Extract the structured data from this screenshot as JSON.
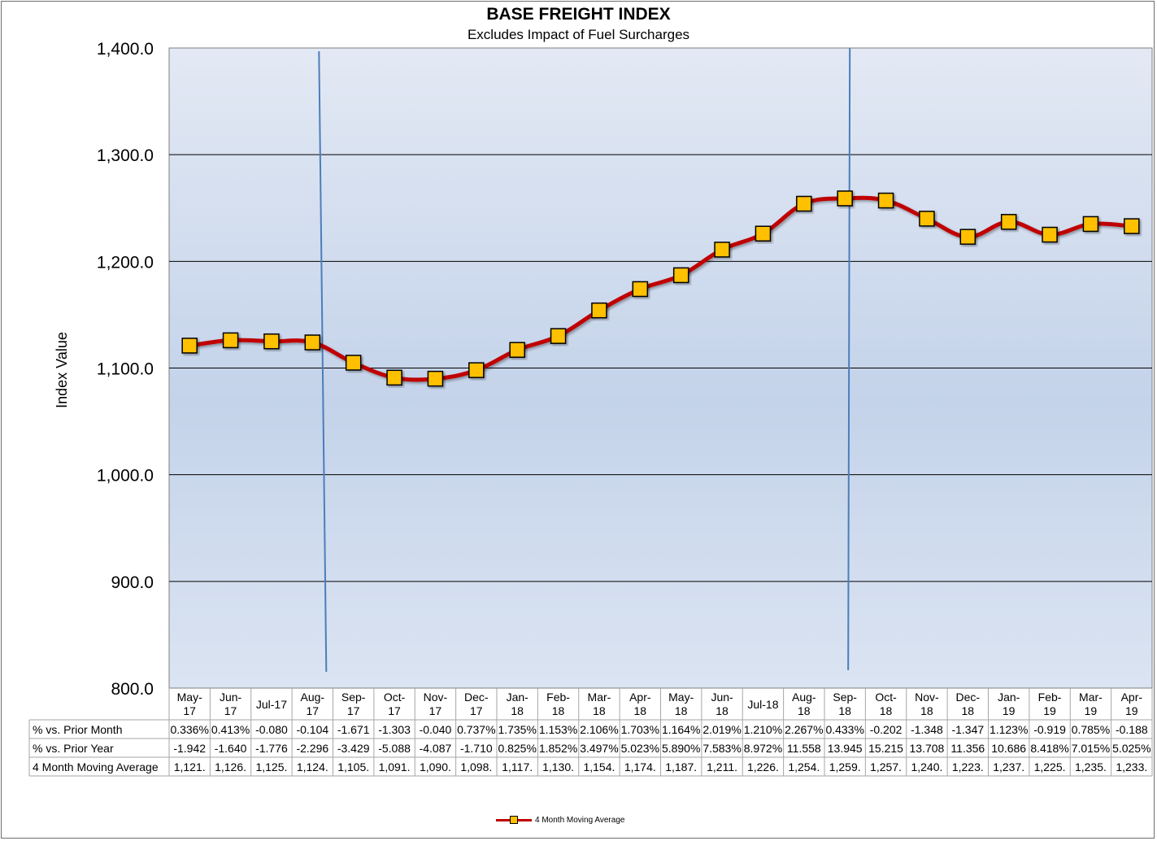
{
  "chart_data": {
    "type": "line",
    "title": "BASE FREIGHT INDEX",
    "subtitle": "Excludes Impact of Fuel Surcharges",
    "ylabel": "Index Value",
    "ylim": [
      800,
      1400
    ],
    "yticks": [
      800,
      900,
      1000,
      1100,
      1200,
      1300,
      1400
    ],
    "ytick_labels": [
      "800.0",
      "900.0",
      "1,000.0",
      "1,100.0",
      "1,200.0",
      "1,300.0",
      "1,400.0"
    ],
    "grid": "horizontal",
    "legend_position": "bottom-center",
    "categories": [
      [
        "May-",
        "17"
      ],
      [
        "Jun-",
        "17"
      ],
      [
        "Jul-17"
      ],
      [
        "Aug-",
        "17"
      ],
      [
        "Sep-",
        "17"
      ],
      [
        "Oct-",
        "17"
      ],
      [
        "Nov-",
        "17"
      ],
      [
        "Dec-",
        "17"
      ],
      [
        "Jan-",
        "18"
      ],
      [
        "Feb-",
        "18"
      ],
      [
        "Mar-",
        "18"
      ],
      [
        "Apr-",
        "18"
      ],
      [
        "May-",
        "18"
      ],
      [
        "Jun-",
        "18"
      ],
      [
        "Jul-18"
      ],
      [
        "Aug-",
        "18"
      ],
      [
        "Sep-",
        "18"
      ],
      [
        "Oct-",
        "18"
      ],
      [
        "Nov-",
        "18"
      ],
      [
        "Dec-",
        "18"
      ],
      [
        "Jan-",
        "19"
      ],
      [
        "Feb-",
        "19"
      ],
      [
        "Mar-",
        "19"
      ],
      [
        "Apr-",
        "19"
      ]
    ],
    "series": [
      {
        "name": "4 Month Moving Average",
        "color": "#c00000",
        "marker_color": "#ffc000",
        "values": [
          1121,
          1126,
          1125,
          1124,
          1105,
          1091,
          1090,
          1098,
          1117,
          1130,
          1154,
          1174,
          1187,
          1211,
          1226,
          1254,
          1259,
          1257,
          1240,
          1223,
          1237,
          1225,
          1235,
          1233
        ]
      }
    ],
    "annotations": {
      "vertical_lines_near": [
        "Aug-17",
        "Sep-18"
      ],
      "line_color": "#4a7ebb"
    },
    "table": {
      "rows": [
        {
          "label": "% vs. Prior Month",
          "cells": [
            "0.336%",
            "0.413%",
            "-0.080",
            "-0.104",
            "-1.671",
            "-1.303",
            "-0.040",
            "0.737%",
            "1.735%",
            "1.153%",
            "2.106%",
            "1.703%",
            "1.164%",
            "2.019%",
            "1.210%",
            "2.267%",
            "0.433%",
            "-0.202",
            "-1.348",
            "-1.347",
            "1.123%",
            "-0.919",
            "0.785%",
            "-0.188"
          ]
        },
        {
          "label": "% vs. Prior Year",
          "cells": [
            "-1.942",
            "-1.640",
            "-1.776",
            "-2.296",
            "-3.429",
            "-5.088",
            "-4.087",
            "-1.710",
            "0.825%",
            "1.852%",
            "3.497%",
            "5.023%",
            "5.890%",
            "7.583%",
            "8.972%",
            "11.558",
            "13.945",
            "15.215",
            "13.708",
            "11.356",
            "10.686",
            "8.418%",
            "7.015%",
            "5.025%"
          ]
        },
        {
          "label": "4 Month Moving Average",
          "cells": [
            "1,121.",
            "1,126.",
            "1,125.",
            "1,124.",
            "1,105.",
            "1,091.",
            "1,090.",
            "1,098.",
            "1,117.",
            "1,130.",
            "1,154.",
            "1,174.",
            "1,187.",
            "1,211.",
            "1,226.",
            "1,254.",
            "1,259.",
            "1,257.",
            "1,240.",
            "1,223.",
            "1,237.",
            "1,225.",
            "1,235.",
            "1,233."
          ]
        }
      ]
    }
  }
}
